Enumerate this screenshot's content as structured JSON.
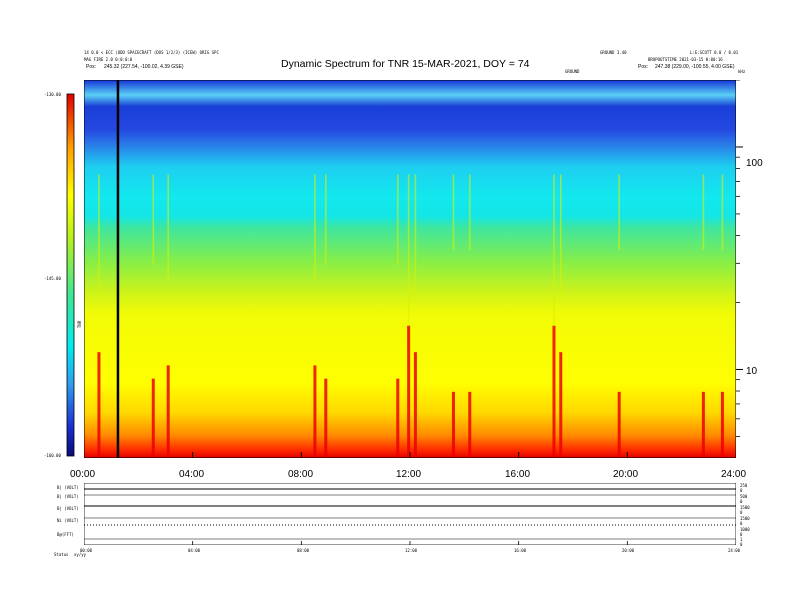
{
  "header": {
    "left_lines": [
      "14 0.0 < ECC (ODD SPACECRAFT (DOS 1/2/3) (ICEW) ORIG SPC",
      "MAG FIRE 2.0 0:0:0:0"
    ],
    "pos_left": "Pos:",
    "pos_left_value": "245.32 (227.54, -100.02, 4.39 GSE)",
    "right_lines": [
      "GROUND 3.40",
      "L:E:SCOTT 0.0 / 0.01"
    ],
    "right_sub": "BROPOUTSTIME 2021-03-15 H:00:16",
    "pos_right": "Pos:",
    "pos_right_value": "247.38 (229.00, -100.55, 4.00 GSE)",
    "center_small": "GROUND",
    "khz_label": "kHz"
  },
  "chart_data": {
    "type": "heatmap",
    "title": "Dynamic Spectrum for TNR 15-MAR-2021, DOY = 74",
    "x_ticks": [
      "00:00",
      "04:00",
      "08:00",
      "12:00",
      "16:00",
      "20:00",
      "24:00"
    ],
    "xlim": [
      0,
      24
    ],
    "ylim_khz": [
      4,
      200
    ],
    "yscale": "log",
    "y_ticks": [
      {
        "value": 100,
        "label": "100"
      },
      {
        "value": 10,
        "label": "10"
      }
    ],
    "colorbar": {
      "labels": [
        "-130.00",
        "-145.00",
        "-160.00"
      ],
      "range_db": [
        -160,
        -130
      ],
      "axis_label": "TNR"
    },
    "marker_hour": 1.25,
    "colors": [
      "#1a2fd0",
      "#2f6fee",
      "#2fb6f0",
      "#12e6ea",
      "#36e89a",
      "#8ef03c",
      "#d8f413",
      "#ffff00",
      "#ffe000",
      "#ff9f00",
      "#ff3a00",
      "#ea0000"
    ],
    "bursts": [
      {
        "hour": 0.55,
        "strength": 0.8
      },
      {
        "hour": 2.55,
        "strength": 0.6
      },
      {
        "hour": 3.1,
        "strength": 0.7
      },
      {
        "hour": 8.5,
        "strength": 0.7
      },
      {
        "hour": 8.9,
        "strength": 0.6
      },
      {
        "hour": 11.55,
        "strength": 0.6
      },
      {
        "hour": 11.95,
        "strength": 1.0
      },
      {
        "hour": 12.2,
        "strength": 0.8
      },
      {
        "hour": 13.6,
        "strength": 0.5
      },
      {
        "hour": 14.2,
        "strength": 0.5
      },
      {
        "hour": 17.3,
        "strength": 1.0
      },
      {
        "hour": 17.55,
        "strength": 0.8
      },
      {
        "hour": 19.7,
        "strength": 0.5
      },
      {
        "hour": 22.8,
        "strength": 0.5
      },
      {
        "hour": 23.5,
        "strength": 0.5
      }
    ]
  },
  "lower_panel": {
    "row_labels": [
      "B| (VOLT)",
      "B| (VOLT)",
      "B| (VOLT)",
      "Ni (VOLT)",
      "B@(FFT)"
    ],
    "right_labels": [
      "250",
      "0",
      "500",
      "0",
      "1500",
      "0",
      "1500",
      "0",
      "1000",
      "0",
      "1",
      "0"
    ],
    "x_ticks": [
      "00:00",
      "04:00",
      "08:00",
      "12:00",
      "16:00",
      "20:00",
      "24:00"
    ],
    "status_label": "Status",
    "status_value": "xy/yy"
  }
}
